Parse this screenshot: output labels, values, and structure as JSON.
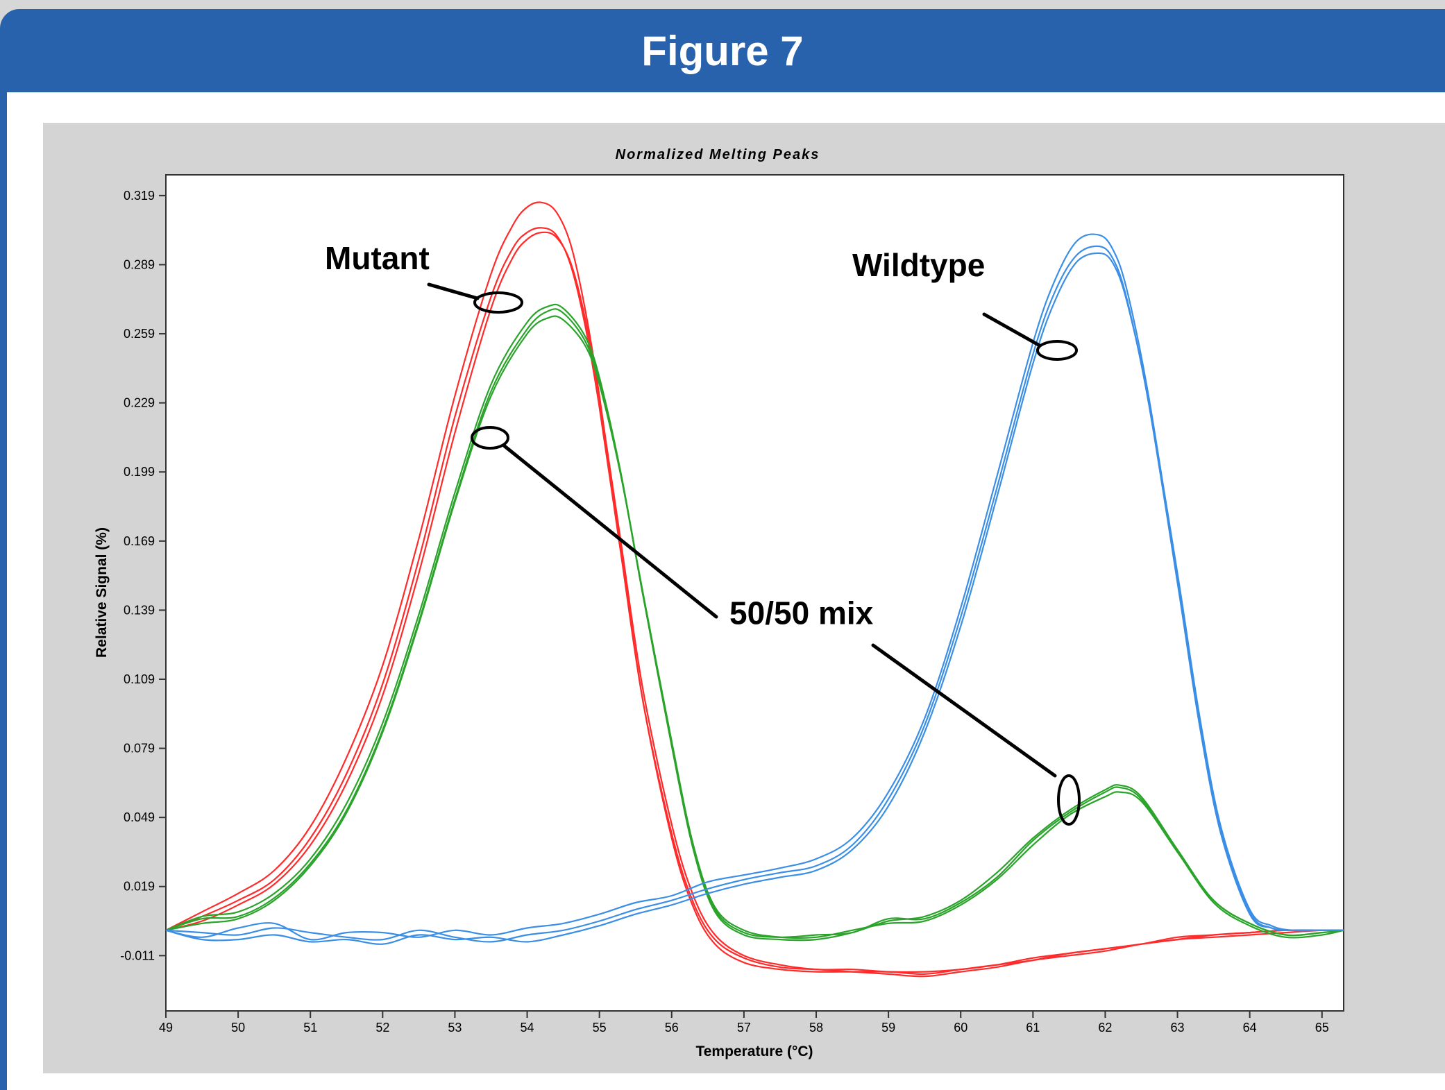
{
  "header": {
    "title": "Figure 7"
  },
  "chart_data": {
    "type": "line",
    "title": "Normalized Melting Peaks",
    "xlabel": "Temperature (°C)",
    "ylabel": "Relative Signal (%)",
    "xlim": [
      49,
      65.3
    ],
    "ylim": [
      -0.035,
      0.328
    ],
    "x_ticks": [
      "49",
      "50",
      "51",
      "52",
      "53",
      "54",
      "55",
      "56",
      "57",
      "58",
      "59",
      "60",
      "61",
      "62",
      "63",
      "64",
      "65"
    ],
    "y_ticks": [
      "0.319",
      "0.289",
      "0.259",
      "0.229",
      "0.199",
      "0.169",
      "0.139",
      "0.109",
      "0.079",
      "0.049",
      "0.019",
      "-0.011"
    ],
    "grid": false,
    "legend": "none",
    "series": [
      {
        "color": "#ff2a2a",
        "x": [
          49,
          49.5,
          50,
          50.5,
          51,
          51.5,
          52,
          52.5,
          53,
          53.5,
          53.8,
          54,
          54.2,
          54.4,
          54.6,
          54.8,
          55,
          55.3,
          55.6,
          56,
          56.3,
          56.6,
          57,
          57.5,
          58,
          58.5,
          59,
          59.5,
          60,
          60.5,
          61,
          61.5,
          62,
          62.5,
          63,
          63.5,
          64,
          64.5,
          65,
          65.3
        ],
        "values": [
          0.0,
          0.008,
          0.016,
          0.026,
          0.045,
          0.075,
          0.115,
          0.17,
          0.232,
          0.285,
          0.306,
          0.314,
          0.316,
          0.312,
          0.298,
          0.27,
          0.232,
          0.165,
          0.1,
          0.04,
          0.01,
          -0.006,
          -0.014,
          -0.017,
          -0.018,
          -0.018,
          -0.018,
          -0.019,
          -0.017,
          -0.015,
          -0.013,
          -0.01,
          -0.008,
          -0.006,
          -0.004,
          -0.002,
          -0.001,
          0.0,
          0.0,
          0.0
        ]
      },
      {
        "color": "#ff2a2a",
        "x": [
          49,
          49.5,
          50,
          50.5,
          51,
          51.5,
          52,
          52.5,
          53,
          53.5,
          53.8,
          54,
          54.2,
          54.4,
          54.6,
          54.8,
          55,
          55.3,
          55.6,
          56,
          56.3,
          56.6,
          57,
          57.5,
          58,
          58.5,
          59,
          59.5,
          60,
          60.5,
          61,
          61.5,
          62,
          62.5,
          63,
          63.5,
          64,
          64.5,
          65,
          65.3
        ],
        "values": [
          0.0,
          0.006,
          0.013,
          0.022,
          0.04,
          0.068,
          0.107,
          0.161,
          0.223,
          0.275,
          0.296,
          0.303,
          0.305,
          0.302,
          0.289,
          0.263,
          0.227,
          0.163,
          0.1,
          0.042,
          0.012,
          -0.004,
          -0.012,
          -0.016,
          -0.017,
          -0.018,
          -0.019,
          -0.02,
          -0.018,
          -0.016,
          -0.013,
          -0.011,
          -0.009,
          -0.006,
          -0.004,
          -0.003,
          -0.002,
          -0.001,
          0.0,
          0.0
        ]
      },
      {
        "color": "#ff2a2a",
        "x": [
          49,
          49.5,
          50,
          50.5,
          51,
          51.5,
          52,
          52.5,
          53,
          53.5,
          53.8,
          54,
          54.2,
          54.4,
          54.6,
          54.8,
          55,
          55.3,
          55.6,
          56,
          56.3,
          56.6,
          57,
          57.5,
          58,
          58.5,
          59,
          59.5,
          60,
          60.5,
          61,
          61.5,
          62,
          62.5,
          63,
          63.5,
          64,
          64.5,
          65,
          65.3
        ],
        "values": [
          0.0,
          0.004,
          0.011,
          0.02,
          0.037,
          0.064,
          0.102,
          0.155,
          0.216,
          0.27,
          0.292,
          0.3,
          0.303,
          0.301,
          0.29,
          0.266,
          0.231,
          0.168,
          0.105,
          0.046,
          0.015,
          -0.002,
          -0.011,
          -0.015,
          -0.017,
          -0.017,
          -0.018,
          -0.018,
          -0.017,
          -0.015,
          -0.012,
          -0.01,
          -0.008,
          -0.006,
          -0.003,
          -0.002,
          -0.001,
          0.0,
          0.0,
          0.0
        ]
      },
      {
        "color": "#2aa32a",
        "x": [
          49,
          49.5,
          50,
          50.5,
          51,
          51.5,
          52,
          52.5,
          53,
          53.5,
          54,
          54.3,
          54.5,
          54.8,
          55,
          55.3,
          55.6,
          56,
          56.3,
          56.6,
          57,
          57.5,
          58,
          58.5,
          59,
          59.5,
          60,
          60.5,
          61,
          61.5,
          62,
          62.2,
          62.5,
          63,
          63.5,
          64,
          64.5,
          65,
          65.3
        ],
        "values": [
          0.0,
          0.006,
          0.008,
          0.016,
          0.031,
          0.055,
          0.09,
          0.137,
          0.19,
          0.237,
          0.264,
          0.271,
          0.27,
          0.258,
          0.24,
          0.198,
          0.146,
          0.08,
          0.035,
          0.008,
          -0.002,
          -0.004,
          -0.004,
          -0.001,
          0.004,
          0.006,
          0.013,
          0.025,
          0.04,
          0.052,
          0.061,
          0.063,
          0.058,
          0.035,
          0.013,
          0.003,
          -0.002,
          -0.001,
          0.0
        ]
      },
      {
        "color": "#2aa32a",
        "x": [
          49,
          49.5,
          50,
          50.5,
          51,
          51.5,
          52,
          52.5,
          53,
          53.5,
          54,
          54.3,
          54.5,
          54.8,
          55,
          55.3,
          55.6,
          56,
          56.3,
          56.6,
          57,
          57.5,
          58,
          58.5,
          59,
          59.5,
          60,
          60.5,
          61,
          61.5,
          62,
          62.2,
          62.5,
          63,
          63.5,
          64,
          64.5,
          65,
          65.3
        ],
        "values": [
          0.0,
          0.003,
          0.005,
          0.013,
          0.028,
          0.051,
          0.086,
          0.133,
          0.186,
          0.232,
          0.259,
          0.266,
          0.265,
          0.254,
          0.237,
          0.197,
          0.147,
          0.082,
          0.037,
          0.01,
          0.0,
          -0.003,
          -0.003,
          0.0,
          0.003,
          0.004,
          0.011,
          0.022,
          0.037,
          0.05,
          0.058,
          0.06,
          0.056,
          0.034,
          0.012,
          0.002,
          -0.003,
          -0.002,
          0.0
        ]
      },
      {
        "color": "#2aa32a",
        "x": [
          49,
          49.5,
          50,
          50.5,
          51,
          51.5,
          52,
          52.5,
          53,
          53.5,
          54,
          54.3,
          54.5,
          54.8,
          55,
          55.3,
          55.6,
          56,
          56.3,
          56.6,
          57,
          57.5,
          58,
          58.5,
          59,
          59.5,
          60,
          60.5,
          61,
          61.5,
          62,
          62.2,
          62.5,
          63,
          63.5,
          64,
          64.5,
          65,
          65.3
        ],
        "values": [
          0.0,
          0.005,
          0.006,
          0.014,
          0.029,
          0.052,
          0.087,
          0.134,
          0.187,
          0.234,
          0.261,
          0.269,
          0.268,
          0.256,
          0.238,
          0.197,
          0.146,
          0.081,
          0.036,
          0.009,
          -0.001,
          -0.003,
          -0.002,
          -0.001,
          0.005,
          0.005,
          0.012,
          0.023,
          0.039,
          0.051,
          0.06,
          0.062,
          0.057,
          0.034,
          0.013,
          0.003,
          -0.002,
          -0.001,
          0.0
        ]
      },
      {
        "color": "#3a8ee6",
        "x": [
          49,
          49.5,
          50,
          50.5,
          51,
          51.5,
          52,
          52.5,
          53,
          53.5,
          54,
          54.5,
          55,
          55.5,
          56,
          56.5,
          57,
          57.5,
          58,
          58.5,
          59,
          59.5,
          60,
          60.5,
          61,
          61.3,
          61.6,
          61.9,
          62.1,
          62.3,
          62.6,
          63,
          63.3,
          63.6,
          64,
          64.3,
          64.6,
          65,
          65.3
        ],
        "values": [
          0.0,
          -0.003,
          0.001,
          0.003,
          -0.004,
          -0.001,
          -0.001,
          -0.003,
          0.0,
          -0.002,
          0.001,
          0.003,
          0.007,
          0.012,
          0.015,
          0.021,
          0.024,
          0.027,
          0.031,
          0.04,
          0.06,
          0.092,
          0.14,
          0.197,
          0.255,
          0.282,
          0.299,
          0.302,
          0.296,
          0.278,
          0.232,
          0.153,
          0.092,
          0.043,
          0.008,
          0.001,
          0.0,
          0.0,
          0.0
        ]
      },
      {
        "color": "#3a8ee6",
        "x": [
          49,
          49.5,
          50,
          50.5,
          51,
          51.5,
          52,
          52.5,
          53,
          53.5,
          54,
          54.5,
          55,
          55.5,
          56,
          56.5,
          57,
          57.5,
          58,
          58.5,
          59,
          59.5,
          60,
          60.5,
          61,
          61.3,
          61.6,
          61.9,
          62.1,
          62.3,
          62.6,
          63,
          63.3,
          63.6,
          64,
          64.3,
          64.6,
          65,
          65.3
        ],
        "values": [
          0.0,
          -0.001,
          -0.002,
          0.001,
          -0.001,
          -0.003,
          -0.004,
          0.0,
          -0.003,
          -0.005,
          -0.002,
          0.0,
          0.004,
          0.009,
          0.013,
          0.018,
          0.022,
          0.025,
          0.028,
          0.037,
          0.057,
          0.089,
          0.136,
          0.192,
          0.25,
          0.277,
          0.293,
          0.297,
          0.292,
          0.274,
          0.229,
          0.151,
          0.09,
          0.042,
          0.007,
          0.001,
          0.0,
          0.0,
          0.0
        ]
      },
      {
        "color": "#3a8ee6",
        "x": [
          49,
          49.5,
          50,
          50.5,
          51,
          51.5,
          52,
          52.5,
          53,
          53.5,
          54,
          54.5,
          55,
          55.5,
          56,
          56.5,
          57,
          57.5,
          58,
          58.5,
          59,
          59.5,
          60,
          60.5,
          61,
          61.3,
          61.6,
          61.9,
          62.1,
          62.3,
          62.6,
          63,
          63.3,
          63.6,
          64,
          64.3,
          64.6,
          65,
          65.3
        ],
        "values": [
          0.0,
          -0.004,
          -0.004,
          -0.002,
          -0.005,
          -0.004,
          -0.006,
          -0.002,
          -0.004,
          -0.003,
          -0.005,
          -0.002,
          0.002,
          0.007,
          0.011,
          0.016,
          0.02,
          0.023,
          0.026,
          0.035,
          0.054,
          0.086,
          0.132,
          0.188,
          0.246,
          0.273,
          0.29,
          0.294,
          0.29,
          0.273,
          0.23,
          0.155,
          0.094,
          0.045,
          0.009,
          0.002,
          0.0,
          0.0,
          0.0
        ]
      }
    ],
    "annotations": [
      {
        "text": "Mutant",
        "x": 51.2,
        "y": 0.287
      },
      {
        "text": "Wildtype",
        "x": 58.5,
        "y": 0.284
      },
      {
        "text": "50/50 mix",
        "x": 56.8,
        "y": 0.133
      }
    ]
  }
}
